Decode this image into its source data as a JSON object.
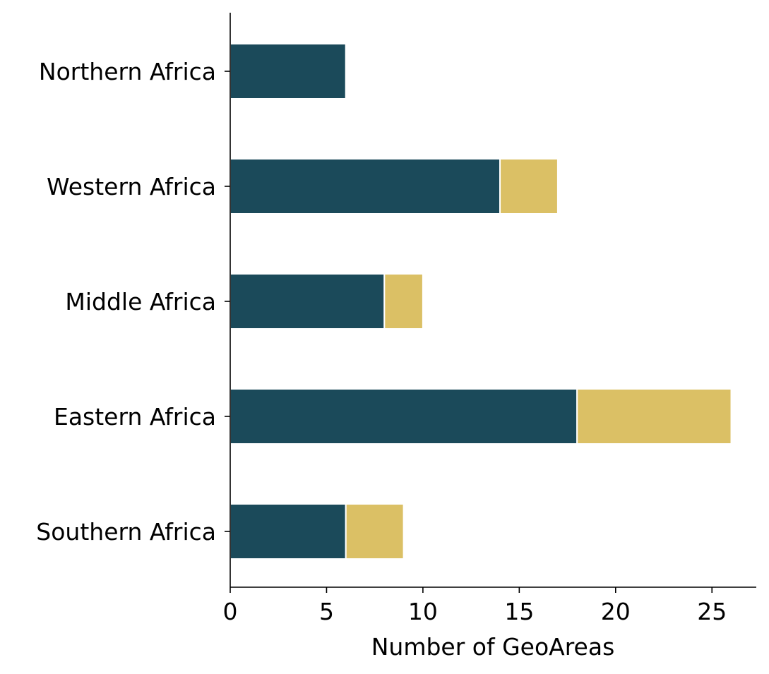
{
  "chart_data": {
    "type": "bar",
    "orientation": "horizontal",
    "stacked": true,
    "title": "",
    "xlabel": "Number of GeoAreas",
    "ylabel": "",
    "categories": [
      "Northern Africa",
      "Western Africa",
      "Middle Africa",
      "Eastern Africa",
      "Southern Africa"
    ],
    "series": [
      {
        "values": [
          6,
          14,
          8,
          18,
          6
        ],
        "color": "#1b4a5a"
      },
      {
        "values": [
          0,
          3,
          2,
          8,
          3
        ],
        "color": "#dbc065"
      }
    ],
    "xlim": [
      0,
      27.3
    ],
    "xticks": [
      0,
      5,
      10,
      15,
      20,
      25
    ],
    "xtick_labels": [
      "0",
      "5",
      "10",
      "15",
      "20",
      "25"
    ],
    "grid": false,
    "legend": "none"
  }
}
